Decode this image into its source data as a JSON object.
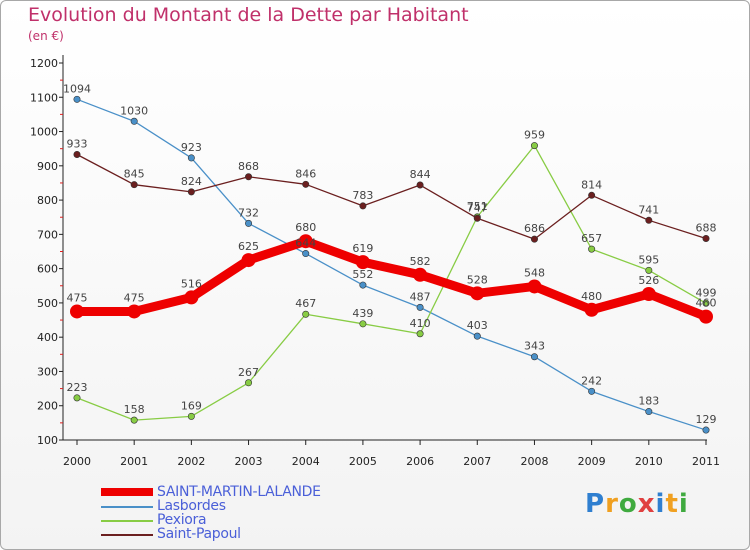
{
  "title": "Evolution du Montant de la Dette par Habitant",
  "subtitle": "(en €)",
  "logo_text": "Proxiti",
  "chart_data": {
    "type": "line",
    "title": "Evolution du Montant de la Dette par Habitant",
    "subtitle": "(en €)",
    "xlabel": "",
    "ylabel": "",
    "x": [
      "2000",
      "2001",
      "2002",
      "2003",
      "2004",
      "2005",
      "2006",
      "2007",
      "2008",
      "2009",
      "2010",
      "2011"
    ],
    "ylim": [
      100,
      1200
    ],
    "yticks": [
      100,
      200,
      300,
      400,
      500,
      600,
      700,
      800,
      900,
      1000,
      1100,
      1200
    ],
    "grid": false,
    "legend_position": "bottom-left",
    "series": [
      {
        "name": "SAINT-MARTIN-LALANDE",
        "color": "#ee0000",
        "bold": true,
        "values": [
          475,
          475,
          516,
          625,
          680,
          619,
          582,
          528,
          548,
          480,
          526,
          460
        ],
        "labels": [
          "475",
          "475",
          "516",
          "625",
          "680",
          "619",
          "582",
          "528",
          "548",
          "480",
          "526",
          "460"
        ]
      },
      {
        "name": "Lasbordes",
        "color": "#4a90c8",
        "bold": false,
        "values": [
          1094,
          1030,
          923,
          732,
          644,
          552,
          487,
          403,
          343,
          242,
          183,
          129
        ],
        "labels": [
          "1094",
          "1030",
          "923",
          "732",
          "644",
          "552",
          "487",
          "403",
          "343",
          "242",
          "183",
          "129"
        ]
      },
      {
        "name": "Pexiora",
        "color": "#88cc44",
        "bold": false,
        "values": [
          223,
          158,
          169,
          267,
          467,
          439,
          410,
          751,
          959,
          657,
          595,
          499
        ],
        "labels": [
          "223",
          "158",
          "169",
          "267",
          "467",
          "439",
          "410",
          "751",
          "959",
          "657",
          "595",
          "499"
        ]
      },
      {
        "name": "Saint-Papoul",
        "color": "#6b1f1f",
        "bold": false,
        "values": [
          933,
          845,
          824,
          868,
          846,
          783,
          844,
          747,
          686,
          814,
          741,
          688
        ],
        "labels": [
          "933",
          "845",
          "824",
          "868",
          "846",
          "783",
          "844",
          "747",
          "686",
          "814",
          "741",
          "688"
        ]
      }
    ]
  }
}
